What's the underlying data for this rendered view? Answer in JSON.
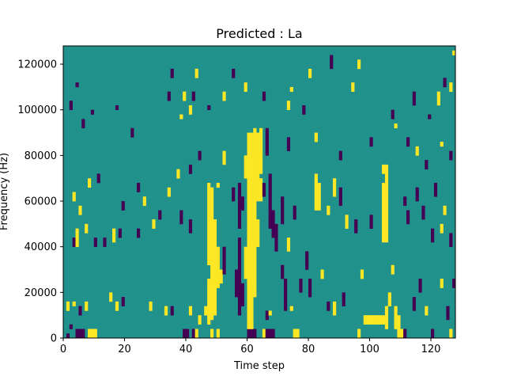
{
  "chart_data": {
    "type": "heatmap",
    "title": "Predicted : La",
    "xlabel": "Time step",
    "ylabel": "Frequency (Hz)",
    "xlim": [
      0,
      128
    ],
    "ylim": [
      0,
      128000
    ],
    "x_ticks": [
      0,
      20,
      40,
      60,
      80,
      100,
      120
    ],
    "x_tick_labels": [
      "0",
      "20",
      "40",
      "60",
      "80",
      "100",
      "120"
    ],
    "y_ticks": [
      0,
      20000,
      40000,
      60000,
      80000,
      100000,
      120000
    ],
    "y_tick_labels": [
      "0",
      "20000",
      "40000",
      "60000",
      "80000",
      "100000",
      "120000"
    ],
    "n_time_steps": 128,
    "n_freq_bins": 64,
    "bin_height_hz": 2000,
    "colors": {
      "background": "#21918c",
      "low": "#440154",
      "high": "#fde725"
    },
    "cells": [
      {
        "t": 1,
        "f0": 0,
        "f1": 2000,
        "v": "low"
      },
      {
        "t": 4,
        "f0": 0,
        "f1": 4000,
        "v": "low"
      },
      {
        "t": 5,
        "f0": 0,
        "f1": 4000,
        "v": "low"
      },
      {
        "t": 6,
        "f0": 0,
        "f1": 4000,
        "v": "low"
      },
      {
        "t": 8,
        "f0": 0,
        "f1": 4000,
        "v": "high"
      },
      {
        "t": 9,
        "f0": 0,
        "f1": 4000,
        "v": "high"
      },
      {
        "t": 10,
        "f0": 0,
        "f1": 4000,
        "v": "high"
      },
      {
        "t": 39,
        "f0": 0,
        "f1": 4000,
        "v": "low"
      },
      {
        "t": 40,
        "f0": 0,
        "f1": 4000,
        "v": "low"
      },
      {
        "t": 42,
        "f0": 0,
        "f1": 4000,
        "v": "low"
      },
      {
        "t": 43,
        "f0": 0,
        "f1": 4000,
        "v": "high"
      },
      {
        "t": 48,
        "f0": 0,
        "f1": 4000,
        "v": "high"
      },
      {
        "t": 50,
        "f0": 0,
        "f1": 4000,
        "v": "high"
      },
      {
        "t": 60,
        "f0": 0,
        "f1": 4000,
        "v": "low"
      },
      {
        "t": 61,
        "f0": 0,
        "f1": 4000,
        "v": "low"
      },
      {
        "t": 62,
        "f0": 0,
        "f1": 4000,
        "v": "low"
      },
      {
        "t": 65,
        "f0": 0,
        "f1": 4000,
        "v": "high"
      },
      {
        "t": 66,
        "f0": 0,
        "f1": 4000,
        "v": "low"
      },
      {
        "t": 67,
        "f0": 0,
        "f1": 4000,
        "v": "low"
      },
      {
        "t": 68,
        "f0": 0,
        "f1": 4000,
        "v": "low"
      },
      {
        "t": 75,
        "f0": 0,
        "f1": 4000,
        "v": "high"
      },
      {
        "t": 76,
        "f0": 0,
        "f1": 4000,
        "v": "high"
      },
      {
        "t": 96,
        "f0": 0,
        "f1": 4000,
        "v": "high"
      },
      {
        "t": 109,
        "f0": 0,
        "f1": 4000,
        "v": "high"
      },
      {
        "t": 110,
        "f0": 0,
        "f1": 4000,
        "v": "high"
      },
      {
        "t": 111,
        "f0": 0,
        "f1": 4000,
        "v": "low"
      },
      {
        "t": 120,
        "f0": 0,
        "f1": 4000,
        "v": "low"
      },
      {
        "t": 98,
        "f0": 6000,
        "f1": 10000,
        "v": "high"
      },
      {
        "t": 99,
        "f0": 6000,
        "f1": 10000,
        "v": "high"
      },
      {
        "t": 100,
        "f0": 6000,
        "f1": 10000,
        "v": "high"
      },
      {
        "t": 101,
        "f0": 6000,
        "f1": 10000,
        "v": "high"
      },
      {
        "t": 102,
        "f0": 6000,
        "f1": 10000,
        "v": "high"
      },
      {
        "t": 103,
        "f0": 6000,
        "f1": 10000,
        "v": "high"
      },
      {
        "t": 104,
        "f0": 6000,
        "f1": 10000,
        "v": "high"
      },
      {
        "t": 105,
        "f0": 4000,
        "f1": 14000,
        "v": "high"
      },
      {
        "t": 108,
        "f0": 4000,
        "f1": 14000,
        "v": "high"
      },
      {
        "t": 109,
        "f0": 4000,
        "f1": 10000,
        "v": "high"
      },
      {
        "t": 2,
        "f0": 4000,
        "f1": 6000,
        "v": "low"
      },
      {
        "t": 1,
        "f0": 12000,
        "f1": 16000,
        "v": "high"
      },
      {
        "t": 3,
        "f0": 14000,
        "f1": 16000,
        "v": "high"
      },
      {
        "t": 5,
        "f0": 10000,
        "f1": 14000,
        "v": "low"
      },
      {
        "t": 7,
        "f0": 12000,
        "f1": 16000,
        "v": "high"
      },
      {
        "t": 15,
        "f0": 16000,
        "f1": 20000,
        "v": "high"
      },
      {
        "t": 17,
        "f0": 12000,
        "f1": 16000,
        "v": "high"
      },
      {
        "t": 19,
        "f0": 14000,
        "f1": 18000,
        "v": "low"
      },
      {
        "t": 28,
        "f0": 12000,
        "f1": 16000,
        "v": "high"
      },
      {
        "t": 33,
        "f0": 10000,
        "f1": 14000,
        "v": "high"
      },
      {
        "t": 35,
        "f0": 10000,
        "f1": 14000,
        "v": "low"
      },
      {
        "t": 41,
        "f0": 10000,
        "f1": 14000,
        "v": "high"
      },
      {
        "t": 44,
        "f0": 6000,
        "f1": 10000,
        "v": "high"
      },
      {
        "t": 46,
        "f0": 10000,
        "f1": 14000,
        "v": "high"
      },
      {
        "t": 47,
        "f0": 6000,
        "f1": 26000,
        "v": "high"
      },
      {
        "t": 48,
        "f0": 8000,
        "f1": 34000,
        "v": "high"
      },
      {
        "t": 49,
        "f0": 10000,
        "f1": 34000,
        "v": "high"
      },
      {
        "t": 50,
        "f0": 22000,
        "f1": 40000,
        "v": "high"
      },
      {
        "t": 51,
        "f0": 24000,
        "f1": 30000,
        "v": "high"
      },
      {
        "t": 52,
        "f0": 28000,
        "f1": 40000,
        "v": "low"
      },
      {
        "t": 56,
        "f0": 18000,
        "f1": 30000,
        "v": "low"
      },
      {
        "t": 57,
        "f0": 10000,
        "f1": 44000,
        "v": "low"
      },
      {
        "t": 58,
        "f0": 14000,
        "f1": 24000,
        "v": "low"
      },
      {
        "t": 59,
        "f0": 26000,
        "f1": 40000,
        "v": "high"
      },
      {
        "t": 60,
        "f0": 4000,
        "f1": 90000,
        "v": "high"
      },
      {
        "t": 61,
        "f0": 4000,
        "f1": 90000,
        "v": "high"
      },
      {
        "t": 62,
        "f0": 18000,
        "f1": 90000,
        "v": "high"
      },
      {
        "t": 63,
        "f0": 40000,
        "f1": 52000,
        "v": "high"
      },
      {
        "t": 64,
        "f0": 60000,
        "f1": 70000,
        "v": "high"
      },
      {
        "t": 66,
        "f0": 8000,
        "f1": 12000,
        "v": "low"
      },
      {
        "t": 67,
        "f0": 10000,
        "f1": 12000,
        "v": "high"
      },
      {
        "t": 71,
        "f0": 26000,
        "f1": 32000,
        "v": "low"
      },
      {
        "t": 72,
        "f0": 12000,
        "f1": 26000,
        "v": "low"
      },
      {
        "t": 74,
        "f0": 12000,
        "f1": 14000,
        "v": "high"
      },
      {
        "t": 77,
        "f0": 20000,
        "f1": 26000,
        "v": "low"
      },
      {
        "t": 80,
        "f0": 18000,
        "f1": 26000,
        "v": "low"
      },
      {
        "t": 84,
        "f0": 26000,
        "f1": 30000,
        "v": "high"
      },
      {
        "t": 86,
        "f0": 12000,
        "f1": 16000,
        "v": "low"
      },
      {
        "t": 88,
        "f0": 10000,
        "f1": 16000,
        "v": "high"
      },
      {
        "t": 91,
        "f0": 14000,
        "f1": 20000,
        "v": "low"
      },
      {
        "t": 97,
        "f0": 26000,
        "f1": 30000,
        "v": "high"
      },
      {
        "t": 106,
        "f0": 14000,
        "f1": 20000,
        "v": "high"
      },
      {
        "t": 114,
        "f0": 12000,
        "f1": 18000,
        "v": "low"
      },
      {
        "t": 116,
        "f0": 20000,
        "f1": 26000,
        "v": "low"
      },
      {
        "t": 118,
        "f0": 10000,
        "f1": 14000,
        "v": "high"
      },
      {
        "t": 123,
        "f0": 22000,
        "f1": 26000,
        "v": "high"
      },
      {
        "t": 125,
        "f0": 8000,
        "f1": 14000,
        "v": "low"
      },
      {
        "t": 126,
        "f0": 0,
        "f1": 4000,
        "v": "high"
      },
      {
        "t": 127,
        "f0": 22000,
        "f1": 26000,
        "v": "low"
      },
      {
        "t": 47,
        "f0": 32000,
        "f1": 68000,
        "v": "high"
      },
      {
        "t": 48,
        "f0": 34000,
        "f1": 66000,
        "v": "high"
      },
      {
        "t": 49,
        "f0": 34000,
        "f1": 52000,
        "v": "high"
      },
      {
        "t": 50,
        "f0": 66000,
        "f1": 68000,
        "v": "high"
      },
      {
        "t": 57,
        "f0": 48000,
        "f1": 68000,
        "v": "low"
      },
      {
        "t": 58,
        "f0": 56000,
        "f1": 62000,
        "v": "low"
      },
      {
        "t": 59,
        "f0": 70000,
        "f1": 80000,
        "v": "high"
      },
      {
        "t": 63,
        "f0": 60000,
        "f1": 90000,
        "v": "high"
      },
      {
        "t": 64,
        "f0": 72000,
        "f1": 92000,
        "v": "high"
      },
      {
        "t": 65,
        "f0": 62000,
        "f1": 68000,
        "v": "low"
      },
      {
        "t": 66,
        "f0": 80000,
        "f1": 92000,
        "v": "low"
      },
      {
        "t": 67,
        "f0": 48000,
        "f1": 72000,
        "v": "low"
      },
      {
        "t": 68,
        "f0": 44000,
        "f1": 56000,
        "v": "low"
      },
      {
        "t": 69,
        "f0": 38000,
        "f1": 50000,
        "v": "low"
      },
      {
        "t": 71,
        "f0": 50000,
        "f1": 62000,
        "v": "low"
      },
      {
        "t": 73,
        "f0": 38000,
        "f1": 44000,
        "v": "high"
      },
      {
        "t": 75,
        "f0": 52000,
        "f1": 58000,
        "v": "low"
      },
      {
        "t": 79,
        "f0": 30000,
        "f1": 38000,
        "v": "low"
      },
      {
        "t": 82,
        "f0": 56000,
        "f1": 72000,
        "v": "high"
      },
      {
        "t": 83,
        "f0": 56000,
        "f1": 68000,
        "v": "high"
      },
      {
        "t": 86,
        "f0": 54000,
        "f1": 58000,
        "v": "high"
      },
      {
        "t": 88,
        "f0": 62000,
        "f1": 70000,
        "v": "high"
      },
      {
        "t": 90,
        "f0": 58000,
        "f1": 66000,
        "v": "low"
      },
      {
        "t": 92,
        "f0": 48000,
        "f1": 54000,
        "v": "high"
      },
      {
        "t": 95,
        "f0": 46000,
        "f1": 52000,
        "v": "low"
      },
      {
        "t": 100,
        "f0": 48000,
        "f1": 54000,
        "v": "low"
      },
      {
        "t": 104,
        "f0": 42000,
        "f1": 68000,
        "v": "high"
      },
      {
        "t": 105,
        "f0": 42000,
        "f1": 72000,
        "v": "high"
      },
      {
        "t": 104,
        "f0": 72000,
        "f1": 76000,
        "v": "high"
      },
      {
        "t": 105,
        "f0": 72000,
        "f1": 76000,
        "v": "high"
      },
      {
        "t": 107,
        "f0": 28000,
        "f1": 32000,
        "v": "high"
      },
      {
        "t": 111,
        "f0": 58000,
        "f1": 62000,
        "v": "low"
      },
      {
        "t": 112,
        "f0": 50000,
        "f1": 56000,
        "v": "low"
      },
      {
        "t": 115,
        "f0": 60000,
        "f1": 66000,
        "v": "low"
      },
      {
        "t": 117,
        "f0": 52000,
        "f1": 58000,
        "v": "low"
      },
      {
        "t": 120,
        "f0": 42000,
        "f1": 48000,
        "v": "low"
      },
      {
        "t": 121,
        "f0": 62000,
        "f1": 68000,
        "v": "low"
      },
      {
        "t": 123,
        "f0": 46000,
        "f1": 50000,
        "v": "high"
      },
      {
        "t": 124,
        "f0": 54000,
        "f1": 58000,
        "v": "high"
      },
      {
        "t": 126,
        "f0": 40000,
        "f1": 46000,
        "v": "low"
      },
      {
        "t": 3,
        "f0": 40000,
        "f1": 44000,
        "v": "low"
      },
      {
        "t": 4,
        "f0": 40000,
        "f1": 48000,
        "v": "high"
      },
      {
        "t": 7,
        "f0": 46000,
        "f1": 50000,
        "v": "high"
      },
      {
        "t": 10,
        "f0": 40000,
        "f1": 44000,
        "v": "low"
      },
      {
        "t": 13,
        "f0": 40000,
        "f1": 44000,
        "v": "low"
      },
      {
        "t": 16,
        "f0": 42000,
        "f1": 48000,
        "v": "high"
      },
      {
        "t": 18,
        "f0": 44000,
        "f1": 48000,
        "v": "low"
      },
      {
        "t": 24,
        "f0": 44000,
        "f1": 48000,
        "v": "low"
      },
      {
        "t": 29,
        "f0": 48000,
        "f1": 52000,
        "v": "high"
      },
      {
        "t": 31,
        "f0": 52000,
        "f1": 56000,
        "v": "low"
      },
      {
        "t": 38,
        "f0": 50000,
        "f1": 56000,
        "v": "low"
      },
      {
        "t": 41,
        "f0": 46000,
        "f1": 52000,
        "v": "low"
      },
      {
        "t": 55,
        "f0": 60000,
        "f1": 66000,
        "v": "low"
      },
      {
        "t": 3,
        "f0": 60000,
        "f1": 64000,
        "v": "high"
      },
      {
        "t": 5,
        "f0": 54000,
        "f1": 58000,
        "v": "high"
      },
      {
        "t": 8,
        "f0": 66000,
        "f1": 70000,
        "v": "high"
      },
      {
        "t": 11,
        "f0": 68000,
        "f1": 72000,
        "v": "low"
      },
      {
        "t": 19,
        "f0": 56000,
        "f1": 60000,
        "v": "low"
      },
      {
        "t": 24,
        "f0": 64000,
        "f1": 68000,
        "v": "low"
      },
      {
        "t": 26,
        "f0": 58000,
        "f1": 62000,
        "v": "high"
      },
      {
        "t": 34,
        "f0": 62000,
        "f1": 66000,
        "v": "high"
      },
      {
        "t": 37,
        "f0": 70000,
        "f1": 74000,
        "v": "high"
      },
      {
        "t": 41,
        "f0": 72000,
        "f1": 76000,
        "v": "low"
      },
      {
        "t": 44,
        "f0": 78000,
        "f1": 82000,
        "v": "low"
      },
      {
        "t": 52,
        "f0": 76000,
        "f1": 82000,
        "v": "high"
      },
      {
        "t": 62,
        "f0": 90000,
        "f1": 92000,
        "v": "high"
      },
      {
        "t": 73,
        "f0": 82000,
        "f1": 88000,
        "v": "low"
      },
      {
        "t": 82,
        "f0": 86000,
        "f1": 90000,
        "v": "high"
      },
      {
        "t": 90,
        "f0": 78000,
        "f1": 82000,
        "v": "low"
      },
      {
        "t": 100,
        "f0": 84000,
        "f1": 88000,
        "v": "low"
      },
      {
        "t": 112,
        "f0": 84000,
        "f1": 88000,
        "v": "low"
      },
      {
        "t": 115,
        "f0": 80000,
        "f1": 84000,
        "v": "high"
      },
      {
        "t": 118,
        "f0": 74000,
        "f1": 78000,
        "v": "low"
      },
      {
        "t": 123,
        "f0": 84000,
        "f1": 86000,
        "v": "high"
      },
      {
        "t": 126,
        "f0": 78000,
        "f1": 82000,
        "v": "low"
      },
      {
        "t": 2,
        "f0": 100000,
        "f1": 104000,
        "v": "low"
      },
      {
        "t": 4,
        "f0": 110000,
        "f1": 112000,
        "v": "low"
      },
      {
        "t": 6,
        "f0": 92000,
        "f1": 96000,
        "v": "low"
      },
      {
        "t": 9,
        "f0": 98000,
        "f1": 100000,
        "v": "low"
      },
      {
        "t": 17,
        "f0": 100000,
        "f1": 102000,
        "v": "low"
      },
      {
        "t": 22,
        "f0": 88000,
        "f1": 92000,
        "v": "low"
      },
      {
        "t": 34,
        "f0": 104000,
        "f1": 108000,
        "v": "low"
      },
      {
        "t": 35,
        "f0": 114000,
        "f1": 118000,
        "v": "low"
      },
      {
        "t": 38,
        "f0": 96000,
        "f1": 98000,
        "v": "high"
      },
      {
        "t": 39,
        "f0": 104000,
        "f1": 108000,
        "v": "high"
      },
      {
        "t": 41,
        "f0": 98000,
        "f1": 102000,
        "v": "high"
      },
      {
        "t": 42,
        "f0": 104000,
        "f1": 108000,
        "v": "low"
      },
      {
        "t": 43,
        "f0": 114000,
        "f1": 118000,
        "v": "high"
      },
      {
        "t": 47,
        "f0": 100000,
        "f1": 102000,
        "v": "low"
      },
      {
        "t": 52,
        "f0": 104000,
        "f1": 108000,
        "v": "high"
      },
      {
        "t": 55,
        "f0": 114000,
        "f1": 118000,
        "v": "low"
      },
      {
        "t": 59,
        "f0": 108000,
        "f1": 112000,
        "v": "high"
      },
      {
        "t": 65,
        "f0": 104000,
        "f1": 108000,
        "v": "low"
      },
      {
        "t": 73,
        "f0": 100000,
        "f1": 104000,
        "v": "high"
      },
      {
        "t": 74,
        "f0": 108000,
        "f1": 110000,
        "v": "high"
      },
      {
        "t": 78,
        "f0": 98000,
        "f1": 102000,
        "v": "low"
      },
      {
        "t": 80,
        "f0": 114000,
        "f1": 118000,
        "v": "high"
      },
      {
        "t": 87,
        "f0": 118000,
        "f1": 124000,
        "v": "low"
      },
      {
        "t": 94,
        "f0": 108000,
        "f1": 112000,
        "v": "high"
      },
      {
        "t": 96,
        "f0": 118000,
        "f1": 122000,
        "v": "high"
      },
      {
        "t": 107,
        "f0": 96000,
        "f1": 100000,
        "v": "low"
      },
      {
        "t": 108,
        "f0": 92000,
        "f1": 94000,
        "v": "high"
      },
      {
        "t": 114,
        "f0": 102000,
        "f1": 108000,
        "v": "low"
      },
      {
        "t": 119,
        "f0": 96000,
        "f1": 98000,
        "v": "low"
      },
      {
        "t": 122,
        "f0": 102000,
        "f1": 108000,
        "v": "high"
      },
      {
        "t": 124,
        "f0": 110000,
        "f1": 114000,
        "v": "low"
      },
      {
        "t": 126,
        "f0": 108000,
        "f1": 112000,
        "v": "high"
      },
      {
        "t": 127,
        "f0": 124000,
        "f1": 126000,
        "v": "high"
      }
    ]
  }
}
